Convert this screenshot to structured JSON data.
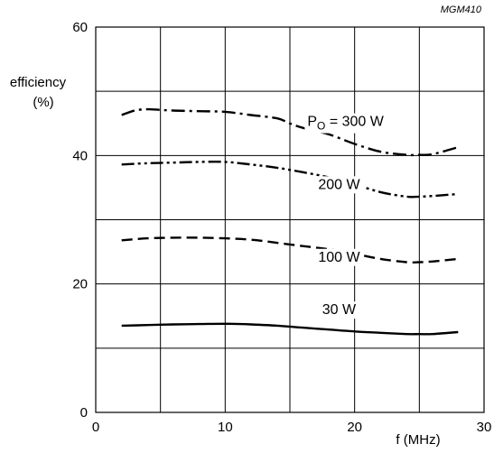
{
  "chart_data": {
    "type": "line",
    "code": "MGM410",
    "ylabel_line1": "efficiency",
    "ylabel_line2": "(%)",
    "xlabel": "f (MHz)",
    "xlim": [
      0,
      30
    ],
    "ylim": [
      0,
      60
    ],
    "x_ticks": [
      0,
      10,
      20,
      30
    ],
    "y_ticks": [
      0,
      20,
      40,
      60
    ],
    "grid": true,
    "series": [
      {
        "name": "300 W",
        "style": "dash-dot",
        "x": [
          2,
          3,
          4,
          5,
          6,
          8,
          10,
          12,
          14,
          15,
          16,
          18,
          20,
          22,
          24,
          25,
          26,
          28
        ],
        "y": [
          46.3,
          47.0,
          47.2,
          47.1,
          47.0,
          46.9,
          46.8,
          46.3,
          45.8,
          45.0,
          44.3,
          43.3,
          41.8,
          40.6,
          40.1,
          40.1,
          40.2,
          41.3
        ]
      },
      {
        "name": "200 W",
        "style": "dash-dot-dot",
        "x": [
          2,
          4,
          6,
          8,
          10,
          12,
          14,
          16,
          18,
          20,
          22,
          24,
          25,
          26,
          28
        ],
        "y": [
          38.6,
          38.8,
          38.9,
          39.0,
          39.0,
          38.6,
          38.1,
          37.4,
          36.6,
          35.5,
          34.3,
          33.6,
          33.6,
          33.7,
          34.0
        ]
      },
      {
        "name": "100 W",
        "style": "dash",
        "x": [
          2,
          4,
          6,
          8,
          10,
          12,
          14,
          16,
          18,
          20,
          22,
          24,
          25,
          26,
          28
        ],
        "y": [
          26.8,
          27.1,
          27.2,
          27.2,
          27.1,
          26.9,
          26.4,
          25.9,
          25.4,
          24.7,
          23.9,
          23.4,
          23.4,
          23.5,
          23.9
        ]
      },
      {
        "name": "30 W",
        "style": "solid",
        "x": [
          2,
          4,
          6,
          8,
          10,
          12,
          14,
          16,
          18,
          20,
          22,
          24,
          25,
          26,
          28
        ],
        "y": [
          13.5,
          13.6,
          13.7,
          13.75,
          13.8,
          13.7,
          13.5,
          13.2,
          12.9,
          12.6,
          12.4,
          12.2,
          12.2,
          12.2,
          12.5
        ]
      }
    ],
    "curve_labels": [
      {
        "main": "P",
        "sub": "O",
        "rest": " = 300 W",
        "x": 19.3,
        "y": 44.6
      },
      {
        "main": "200 W",
        "sub": "",
        "rest": "",
        "x": 18.8,
        "y": 34.8
      },
      {
        "main": "100 W",
        "sub": "",
        "rest": "",
        "x": 18.8,
        "y": 23.5
      },
      {
        "main": "30 W",
        "sub": "",
        "rest": "",
        "x": 18.8,
        "y": 15.3
      }
    ]
  }
}
